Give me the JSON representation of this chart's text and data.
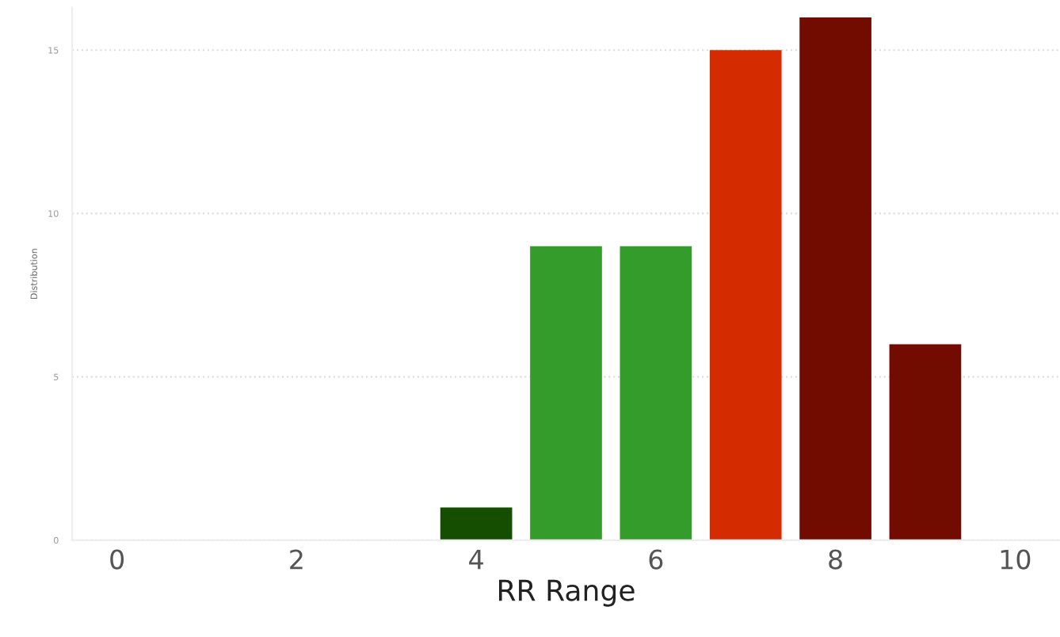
{
  "chart_data": {
    "type": "bar",
    "xlabel": "RR Range",
    "ylabel": "Distribution",
    "x": [
      4,
      5,
      6,
      7,
      8,
      9
    ],
    "values": [
      1,
      9,
      9,
      15,
      16,
      6
    ],
    "colors": [
      "#154e00",
      "#339c2a",
      "#339c2a",
      "#d42b00",
      "#730c00",
      "#730c00"
    ],
    "xlim": [
      -0.5,
      10.5
    ],
    "xticks": [
      0,
      2,
      4,
      6,
      8,
      10
    ],
    "ylim": [
      0,
      16.3
    ],
    "yticks": [
      0,
      5,
      10,
      15
    ],
    "grid": "y"
  }
}
